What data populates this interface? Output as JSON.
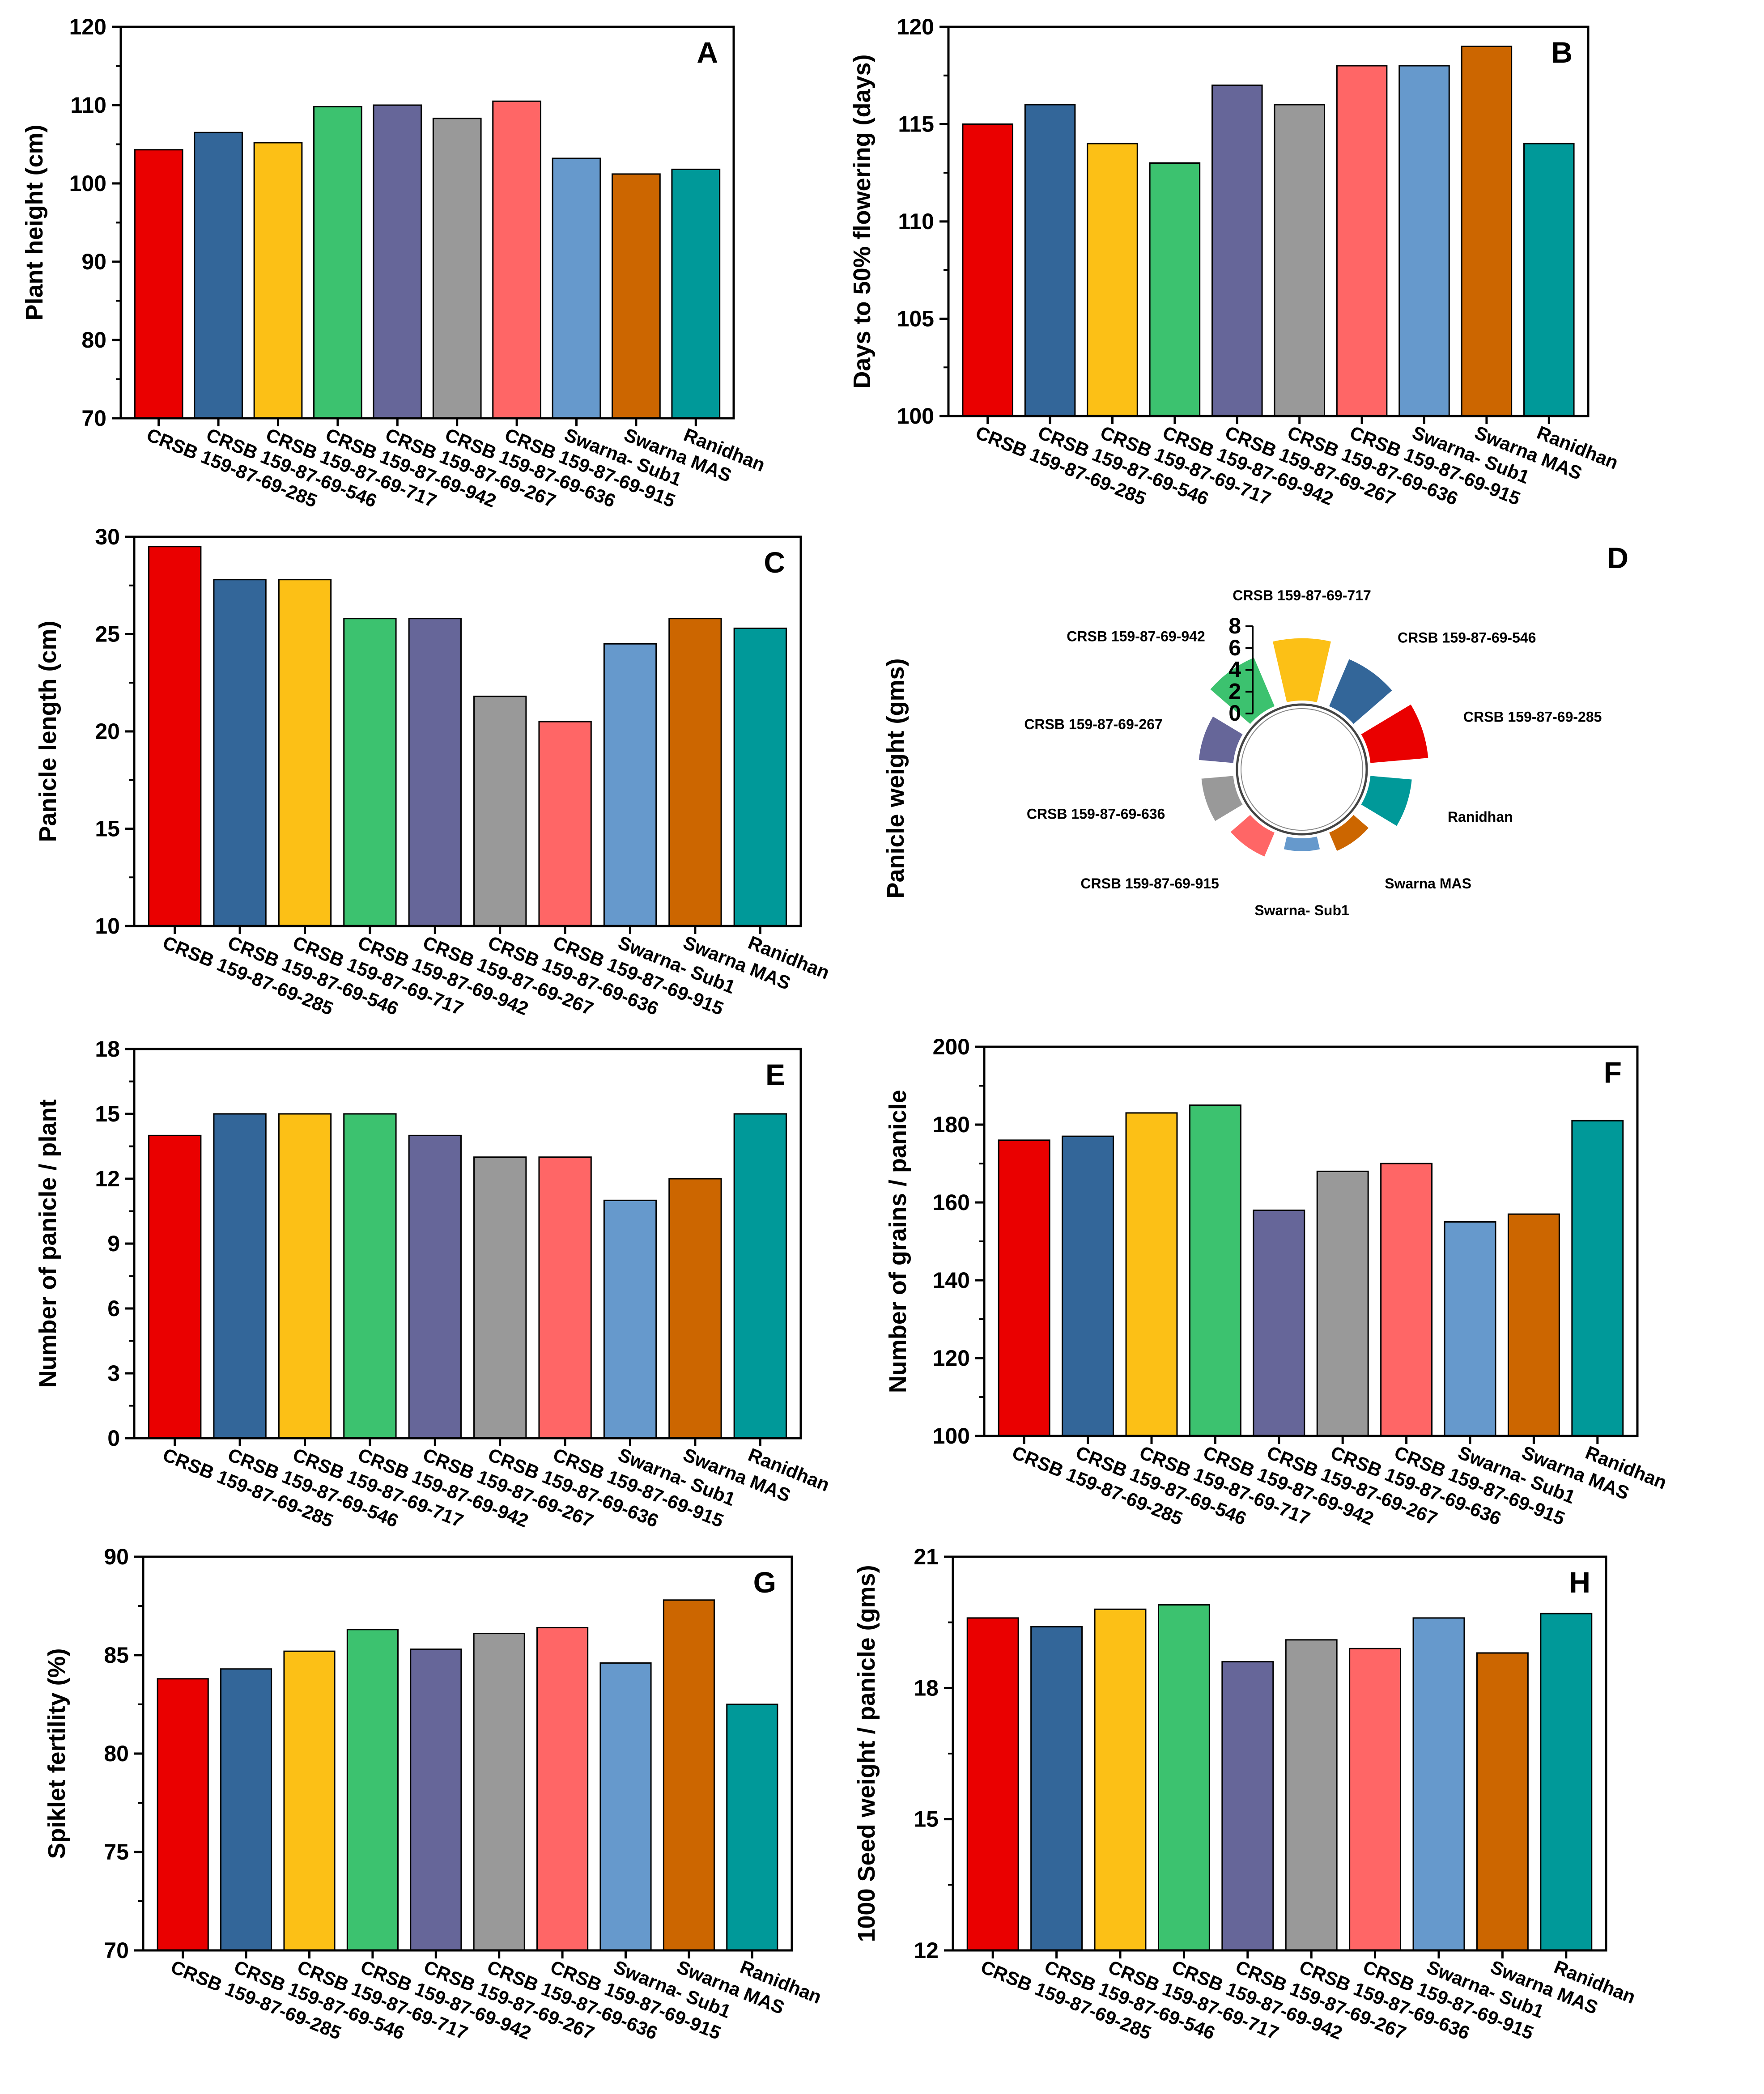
{
  "categories": [
    "CRSB 159-87-69-285",
    "CRSB 159-87-69-546",
    "CRSB 159-87-69-717",
    "CRSB 159-87-69-942",
    "CRSB 159-87-69-267",
    "CRSB 159-87-69-636",
    "CRSB 159-87-69-915",
    "Swarna- Sub1",
    "Swarna MAS",
    "Ranidhan"
  ],
  "colors": [
    "#ea0000",
    "#336699",
    "#fcc016",
    "#3cc26f",
    "#666699",
    "#999999",
    "#ff6666",
    "#6699cc",
    "#cc6600",
    "#009999"
  ],
  "chart_data": [
    {
      "panel": "A",
      "type": "bar",
      "title": "",
      "xlabel": "",
      "ylabel": "Plant height (cm)",
      "ylim": [
        70,
        120
      ],
      "yticks": [
        70,
        80,
        90,
        100,
        110,
        120
      ],
      "values": [
        104.3,
        106.5,
        105.2,
        109.8,
        110.0,
        108.3,
        110.5,
        103.2,
        101.2,
        101.8
      ]
    },
    {
      "panel": "B",
      "type": "bar",
      "title": "",
      "xlabel": "",
      "ylabel": "Days to 50% flowering (days)",
      "ylim": [
        100,
        120
      ],
      "yticks": [
        100,
        105,
        110,
        115,
        120
      ],
      "values": [
        115,
        116,
        114,
        113,
        117,
        116,
        118,
        118,
        119,
        114
      ]
    },
    {
      "panel": "C",
      "type": "bar",
      "title": "",
      "xlabel": "",
      "ylabel": "Panicle length (cm)",
      "ylim": [
        10,
        30
      ],
      "yticks": [
        10,
        15,
        20,
        25,
        30
      ],
      "values": [
        29.5,
        27.8,
        27.8,
        25.8,
        25.8,
        21.8,
        20.5,
        24.5,
        25.8,
        25.3
      ]
    },
    {
      "panel": "D",
      "type": "bar",
      "polar": true,
      "title": "",
      "xlabel": "",
      "ylabel": "Panicle weight (gms)",
      "ylim": [
        0,
        8
      ],
      "yticks": [
        0,
        2,
        4,
        6,
        8
      ],
      "order": [
        "CRSB 159-87-69-717",
        "CRSB 159-87-69-546",
        "CRSB 159-87-69-285",
        "Ranidhan",
        "Swarna MAS",
        "Swarna- Sub1",
        "CRSB 159-87-69-915",
        "CRSB 159-87-69-636",
        "CRSB 159-87-69-267",
        "CRSB 159-87-69-942"
      ],
      "values": [
        7.7,
        6.4,
        7.2,
        5.3,
        2.8,
        2.0,
        3.5,
        4.2,
        4.5,
        6.6
      ]
    },
    {
      "panel": "E",
      "type": "bar",
      "title": "",
      "xlabel": "",
      "ylabel": "Number of panicle / plant",
      "ylim": [
        0,
        18
      ],
      "yticks": [
        0,
        3,
        6,
        9,
        12,
        15,
        18
      ],
      "values": [
        14,
        15,
        15,
        15,
        14,
        13,
        13,
        11,
        12,
        15
      ]
    },
    {
      "panel": "F",
      "type": "bar",
      "title": "",
      "xlabel": "",
      "ylabel": "Number of grains / panicle",
      "ylim": [
        100,
        200
      ],
      "yticks": [
        100,
        120,
        140,
        160,
        180,
        200
      ],
      "values": [
        176,
        177,
        183,
        185,
        158,
        168,
        170,
        155,
        157,
        181
      ]
    },
    {
      "panel": "G",
      "type": "bar",
      "title": "",
      "xlabel": "",
      "ylabel": "Spiklet fertility (%)",
      "ylim": [
        70,
        90
      ],
      "yticks": [
        70,
        75,
        80,
        85,
        90
      ],
      "values": [
        83.8,
        84.3,
        85.2,
        86.3,
        85.3,
        86.1,
        86.4,
        84.6,
        87.8,
        82.5
      ]
    },
    {
      "panel": "H",
      "type": "bar",
      "title": "",
      "xlabel": "",
      "ylabel": "1000 Seed weight / panicle (gms)",
      "ylim": [
        12,
        21
      ],
      "yticks": [
        12,
        15,
        18,
        21
      ],
      "values": [
        19.6,
        19.4,
        19.8,
        19.9,
        18.6,
        19.1,
        18.9,
        19.6,
        18.8,
        19.7
      ]
    }
  ]
}
